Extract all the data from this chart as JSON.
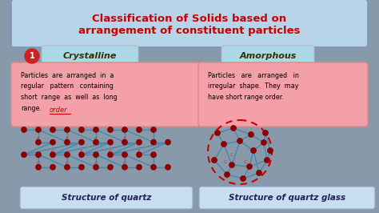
{
  "title_line1": "Classification of Solids based on",
  "title_line2": "arrangement of constituent particles",
  "title_color": "#cc0000",
  "title_bg": "#b8d4e8",
  "bg_color": "#8899aa",
  "label1": "Crystalline",
  "label2": "Amorphous",
  "label_bg": "#add8e6",
  "text1_line1": "Particles  are  arranged  in  a",
  "text1_line2": "regular   pattern   containing",
  "text1_line3": "short  range  as  well  as  long",
  "text1_line4": "range.",
  "text1_extra": "order",
  "text2_line1": "Particles   are   arranged   in",
  "text2_line2": "irregular  shape.  They  may",
  "text2_line3": "have short range order.",
  "text_bg": "#f4a0a8",
  "text_border": "#e08888",
  "caption1": "Structure of quartz",
  "caption2": "Structure of quartz glass",
  "caption_bg": "#c8ddf0",
  "number_bg": "#cc2222",
  "node_color": "#8b0000",
  "line_color": "#4488aa",
  "circle_color": "#cc0000"
}
